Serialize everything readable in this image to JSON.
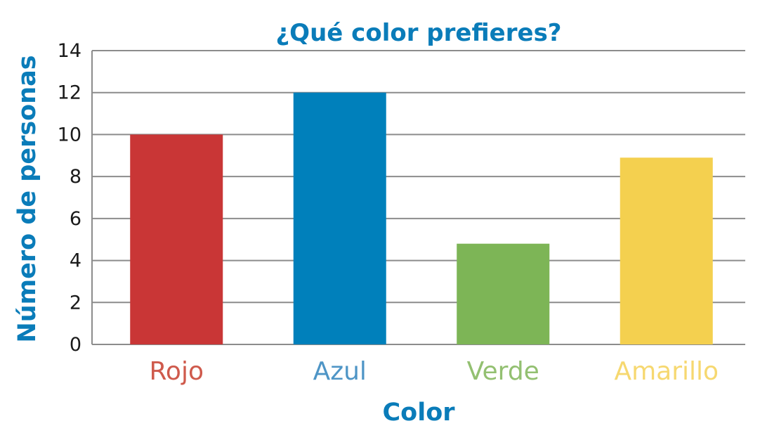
{
  "chart_data": {
    "type": "bar",
    "title": "¿Qué color prefieres?",
    "xlabel": "Color",
    "ylabel": "Número de personas",
    "categories": [
      "Rojo",
      "Azul",
      "Verde",
      "Amarillo"
    ],
    "values": [
      10,
      12,
      4.8,
      8.9
    ],
    "ylim": [
      0,
      14
    ],
    "yticks": [
      "0",
      "2",
      "4",
      "6",
      "8",
      "10",
      "12",
      "14"
    ],
    "grid": true,
    "legend": "none",
    "bar_colors": [
      "#c93636",
      "#0080bb",
      "#7db556",
      "#f4d04f"
    ],
    "label_colors": [
      "#cf5a4c",
      "#4e95c6",
      "#93c071",
      "#f6d870"
    ],
    "title_color": "#0a7cb9",
    "grid_color": "#8c8c8c"
  }
}
